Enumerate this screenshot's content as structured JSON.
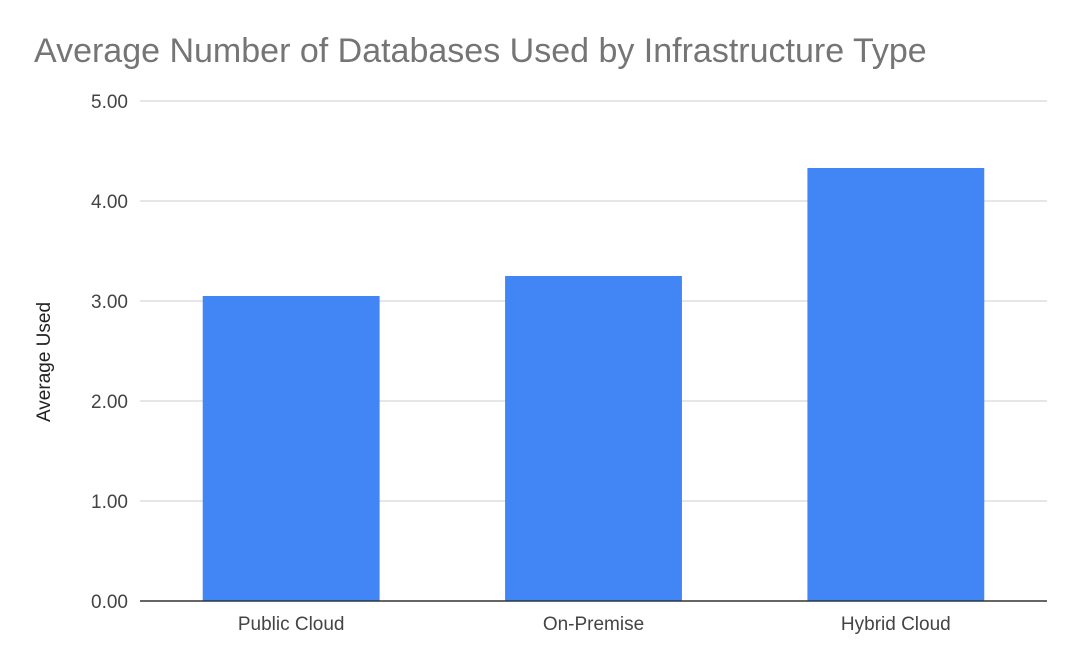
{
  "chart_data": {
    "type": "bar",
    "title": "Average Number of Databases Used by Infrastructure Type",
    "xlabel": "",
    "ylabel": "Average Used",
    "categories": [
      "Public Cloud",
      "On-Premise",
      "Hybrid Cloud"
    ],
    "values": [
      3.05,
      3.25,
      4.33
    ],
    "ylim": [
      0,
      5
    ],
    "yticks": [
      "0.00",
      "1.00",
      "2.00",
      "3.00",
      "4.00",
      "5.00"
    ],
    "grid": true,
    "legend": "none",
    "bar_color": "#4285f4"
  }
}
